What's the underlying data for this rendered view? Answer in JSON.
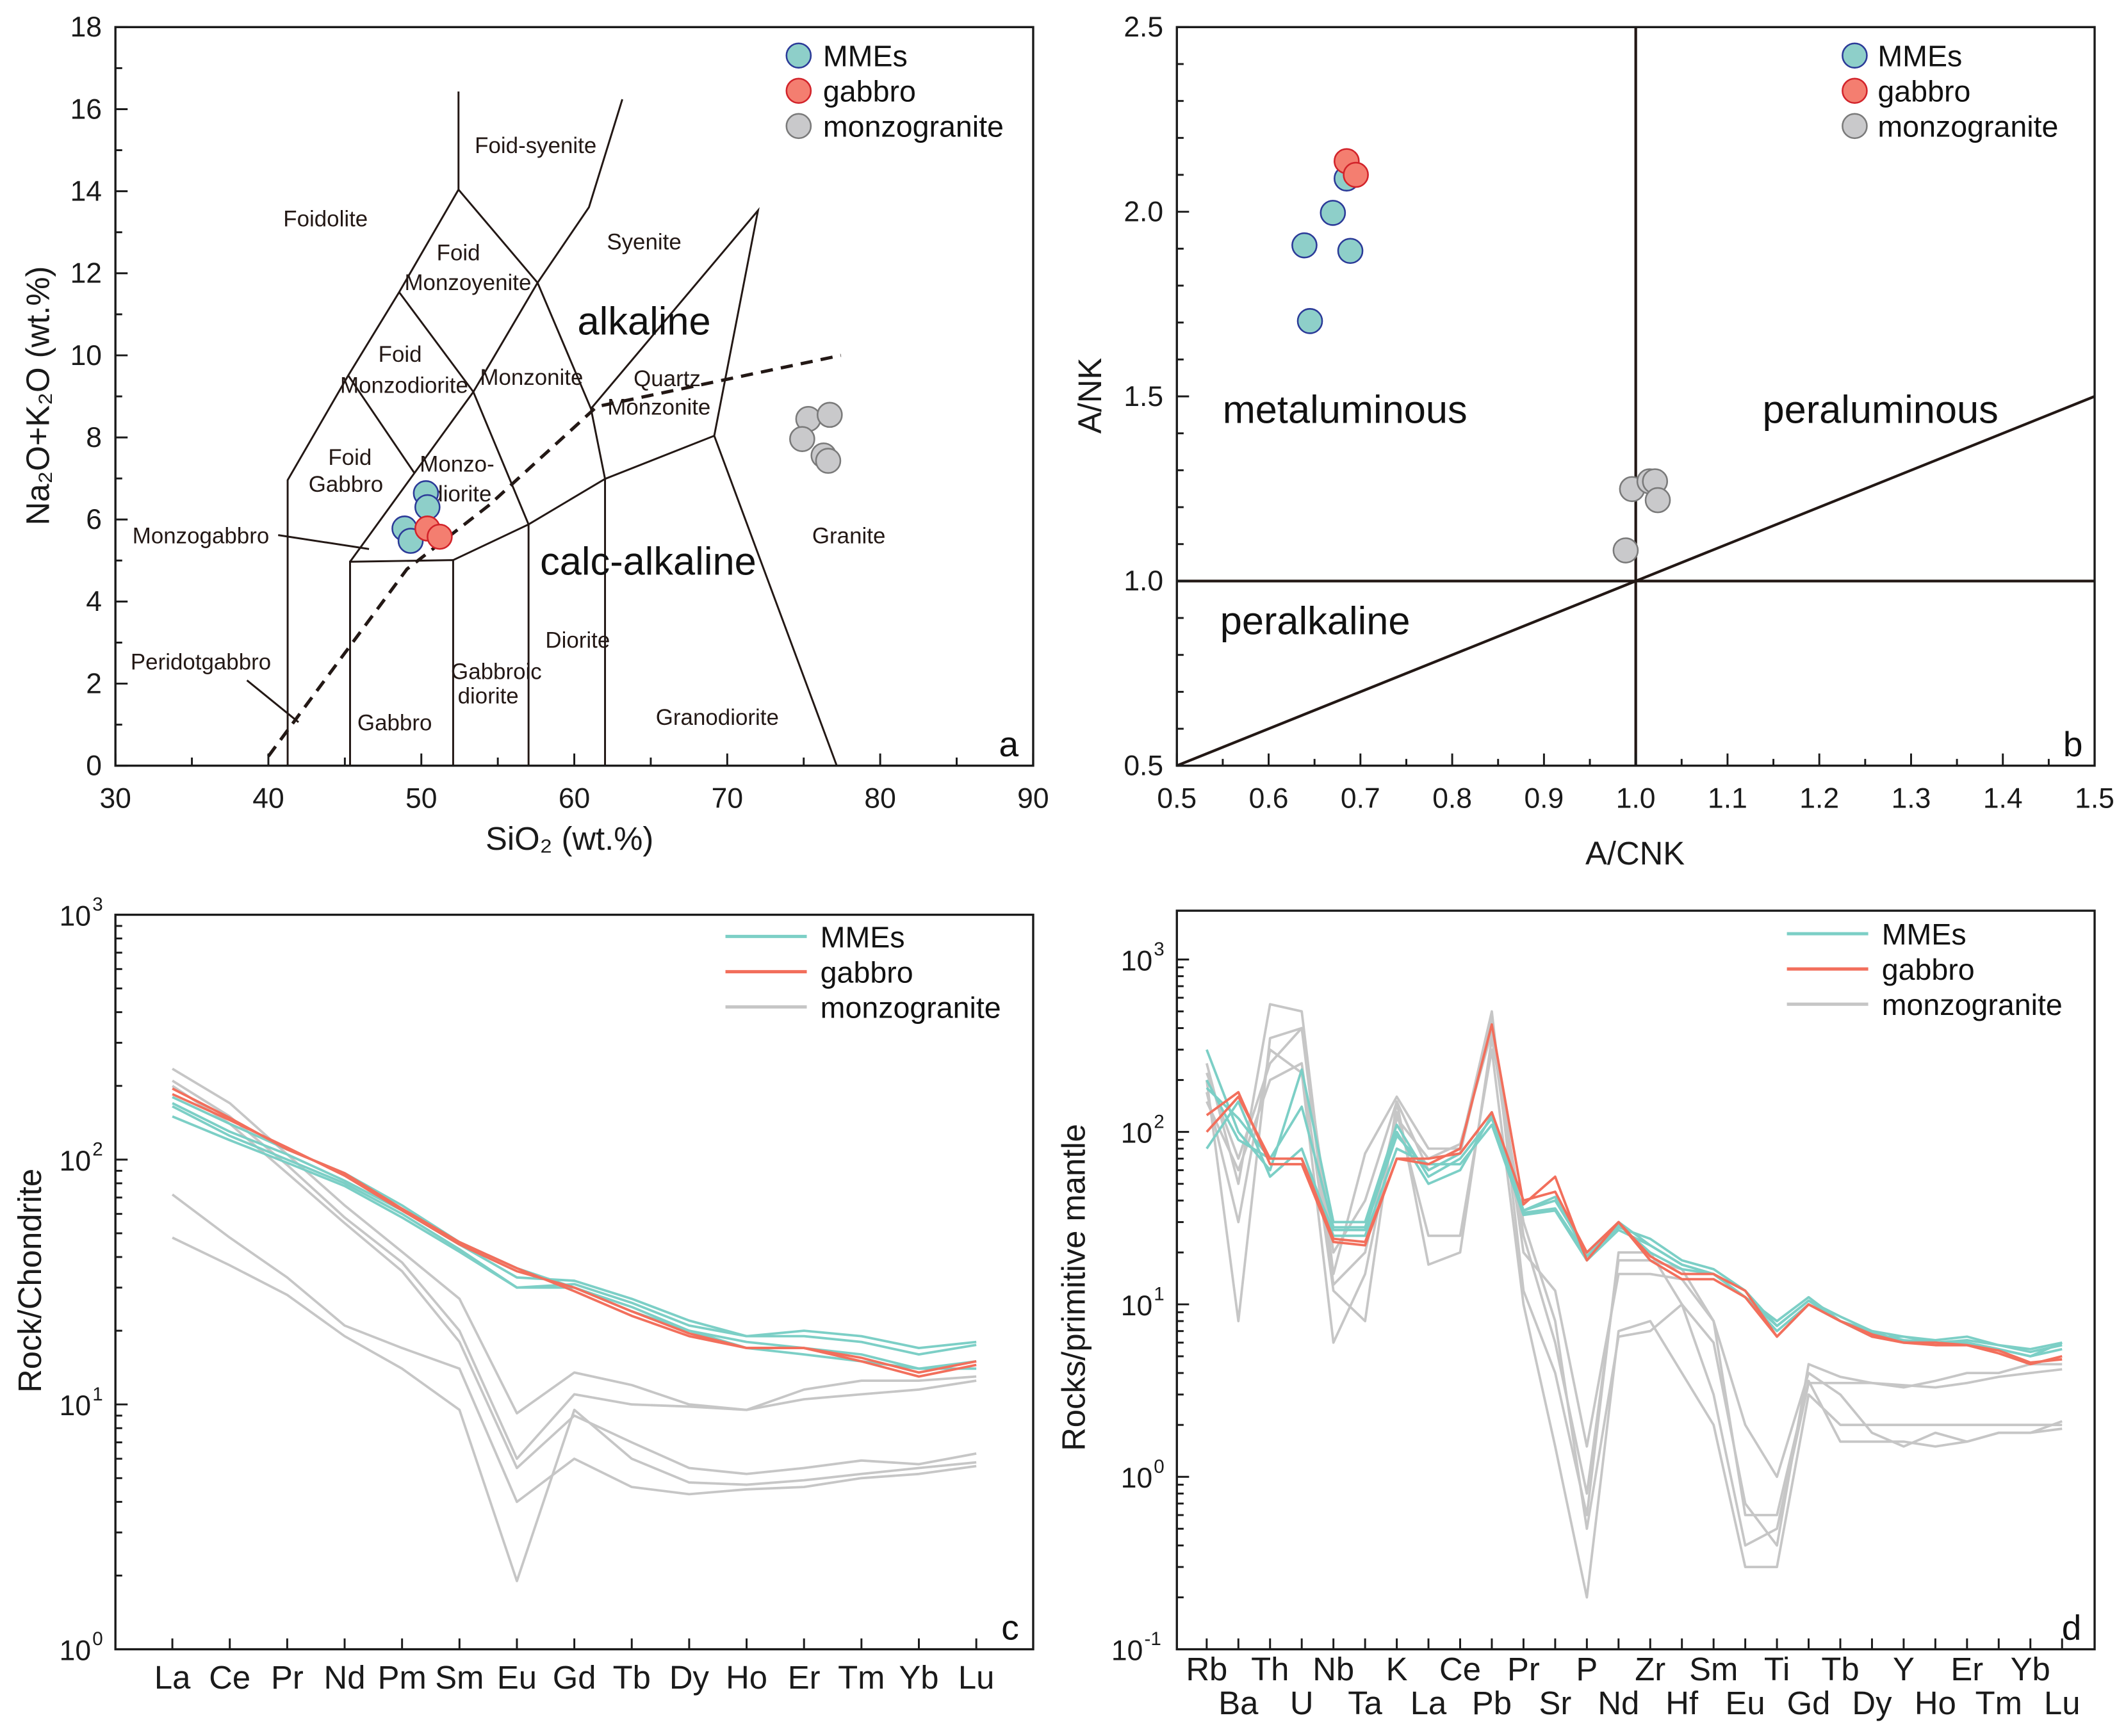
{
  "colors": {
    "mmes_fill": "#8ecfc9",
    "mmes_stroke": "#2b3a98",
    "gabbro_fill": "#f47e70",
    "gabbro_stroke": "#d2232a",
    "monzo_fill": "#c9c9cb",
    "monzo_stroke": "#7a7a7a",
    "mmes_line": "#7ccfc6",
    "gabbro_line": "#f26f5c",
    "monzo_line": "#c6c6c6"
  },
  "chart_data": [
    {
      "panel": "a",
      "type": "scatter",
      "title": "",
      "xlabel": "SiO₂ (wt.%)",
      "ylabel": "Na₂O+K₂O (wt.%)",
      "xlim": [
        30,
        90
      ],
      "ylim": [
        0,
        18
      ],
      "x_ticks": [
        "30",
        "40",
        "50",
        "60",
        "70",
        "80",
        "90"
      ],
      "y_ticks": [
        "0",
        "2",
        "4",
        "6",
        "8",
        "10",
        "12",
        "14",
        "16",
        "18"
      ],
      "legend_position": "top-right",
      "series": [
        {
          "name": "MMEs",
          "points": [
            [
              50.3,
              6.64
            ],
            [
              50.4,
              6.3
            ],
            [
              48.9,
              5.78
            ],
            [
              49.3,
              5.48
            ]
          ]
        },
        {
          "name": "gabbro",
          "points": [
            [
              50.4,
              5.78
            ],
            [
              51.2,
              5.58
            ]
          ]
        },
        {
          "name": "monzogranite",
          "points": [
            [
              75.3,
              8.45
            ],
            [
              76.7,
              8.55
            ],
            [
              74.9,
              7.96
            ],
            [
              76.3,
              7.56
            ],
            [
              76.6,
              7.43
            ]
          ]
        }
      ],
      "field_boundaries": [
        [
          [
            41.26,
            0
          ],
          [
            41.26,
            6.96
          ],
          [
            45.22,
            9.51
          ],
          [
            48.55,
            11.54
          ],
          [
            52.43,
            14.04
          ],
          [
            52.43,
            16.43
          ]
        ],
        [
          [
            52.43,
            14.04
          ],
          [
            57.6,
            11.77
          ],
          [
            60.96,
            13.61
          ],
          [
            63.14,
            16.24
          ]
        ],
        [
          [
            48.55,
            11.54
          ],
          [
            53.4,
            9.11
          ],
          [
            57.6,
            11.77
          ]
        ],
        [
          [
            45.22,
            9.51
          ],
          [
            49.55,
            7.13
          ]
        ],
        [
          [
            45.34,
            4.97
          ],
          [
            53.4,
            9.11
          ],
          [
            57.01,
            5.88
          ]
        ],
        [
          [
            57.6,
            11.77
          ],
          [
            61.09,
            8.7
          ],
          [
            62.01,
            6.99
          ]
        ],
        [
          [
            45.34,
            0
          ],
          [
            45.34,
            4.97
          ],
          [
            52.08,
            5.01
          ],
          [
            52.08,
            0
          ]
        ],
        [
          [
            52.08,
            5.01
          ],
          [
            57.01,
            5.88
          ],
          [
            62.01,
            6.99
          ],
          [
            69.15,
            8.04
          ],
          [
            77.16,
            0
          ]
        ],
        [
          [
            57.01,
            0
          ],
          [
            57.01,
            5.88
          ]
        ],
        [
          [
            62.01,
            0
          ],
          [
            62.01,
            6.99
          ]
        ],
        [
          [
            61.09,
            8.7
          ],
          [
            72.01,
            13.53
          ],
          [
            69.15,
            8.04
          ]
        ],
        [
          [
            40.64,
            5.62
          ],
          [
            46.58,
            5.28
          ]
        ],
        [
          [
            38.6,
            2.08
          ],
          [
            41.97,
            1.06
          ]
        ]
      ],
      "alkaline_divider": [
        [
          40.0,
          0.23
        ],
        [
          49.06,
          4.79
        ],
        [
          54.4,
          6.34
        ],
        [
          61.47,
          8.75
        ],
        [
          77.43,
          10.0
        ]
      ],
      "field_labels": [
        "Foid-syenite",
        "Foidolite",
        "Foid",
        "Monzoyenite",
        "Syenite",
        "alkaline",
        "Foid",
        "Monzodiorite",
        "Monzonite",
        "Quartz",
        "Monzonite",
        "Foid",
        "Gabbro",
        "Monzo-",
        "diorite",
        "Monzogabbro",
        "calc-alkaline",
        "Granite",
        "Diorite",
        "Peridotgabbro",
        "Gabbroic",
        "diorite",
        "Gabbro",
        "Granodiorite"
      ]
    },
    {
      "panel": "b",
      "type": "scatter",
      "title": "",
      "xlabel": "A/CNK",
      "ylabel": "A/NK",
      "xlim": [
        0.5,
        1.5
      ],
      "ylim": [
        0.5,
        2.5
      ],
      "x_ticks": [
        "0.5",
        "0.6",
        "0.7",
        "0.8",
        "0.9",
        "1.0",
        "1.1",
        "1.2",
        "1.3",
        "1.4",
        "1.5"
      ],
      "y_ticks": [
        "0.5",
        "1.0",
        "1.5",
        "2.0",
        "2.5"
      ],
      "legend_position": "top-right",
      "series": [
        {
          "name": "MMEs",
          "points": [
            [
              0.685,
              2.09
            ],
            [
              0.67,
              1.997
            ],
            [
              0.639,
              1.909
            ],
            [
              0.689,
              1.894
            ],
            [
              0.645,
              1.704
            ]
          ]
        },
        {
          "name": "gabbro",
          "points": [
            [
              0.685,
              2.137
            ],
            [
              0.695,
              2.1
            ]
          ]
        },
        {
          "name": "monzogranite",
          "points": [
            [
              0.996,
              1.249
            ],
            [
              1.015,
              1.27
            ],
            [
              1.021,
              1.27
            ],
            [
              1.024,
              1.219
            ],
            [
              0.989,
              1.083
            ]
          ]
        }
      ],
      "field_labels": [
        "metaluminous",
        "peraluminous",
        "peralkaline"
      ]
    },
    {
      "panel": "c",
      "type": "line",
      "title": "",
      "xlabel": "",
      "ylabel": "Rock/Chondrite",
      "yscale": "log",
      "ylim": [
        1,
        1000
      ],
      "y_ticks": [
        {
          "base": "10",
          "exp": "0"
        },
        {
          "base": "10",
          "exp": "1"
        },
        {
          "base": "10",
          "exp": "2"
        },
        {
          "base": "10",
          "exp": "3"
        }
      ],
      "categories": [
        "La",
        "Ce",
        "Pr",
        "Nd",
        "Pm",
        "Sm",
        "Eu",
        "Gd",
        "Tb",
        "Dy",
        "Ho",
        "Er",
        "Tm",
        "Yb",
        "Lu"
      ],
      "legend_position": "top-right",
      "legend": [
        "MMEs",
        "gabbro",
        "monzogranite"
      ],
      "series": [
        {
          "name": "monzogranite",
          "values": [
            235,
            170,
            105,
            65,
            42,
            27,
            9.2,
            13.5,
            12,
            10,
            9.5,
            11.5,
            12.5,
            12.5,
            13
          ]
        },
        {
          "name": "monzogranite",
          "values": [
            210,
            150,
            95,
            58,
            38,
            20,
            6,
            11,
            10,
            9.8,
            9.5,
            10.5,
            11,
            11.5,
            12.5
          ]
        },
        {
          "name": "monzogranite",
          "values": [
            200,
            140,
            88,
            55,
            35,
            18,
            5.5,
            9,
            7,
            5.5,
            5.2,
            5.5,
            5.9,
            5.7,
            6.3
          ]
        },
        {
          "name": "monzogranite",
          "values": [
            72,
            48,
            33,
            21,
            17,
            14,
            4,
            6,
            4.6,
            4.3,
            4.5,
            4.6,
            5,
            5.2,
            5.6
          ]
        },
        {
          "name": "monzogranite",
          "values": [
            48,
            37,
            28,
            19,
            14,
            9.5,
            1.9,
            9.5,
            6,
            4.8,
            4.7,
            4.9,
            5.2,
            5.5,
            5.8
          ]
        },
        {
          "name": "MMEs",
          "values": [
            150,
            120,
            97,
            78,
            58,
            42,
            30,
            30,
            25,
            20,
            17,
            16,
            15,
            14,
            15
          ]
        },
        {
          "name": "MMEs",
          "values": [
            165,
            125,
            100,
            80,
            60,
            43,
            30,
            31,
            26,
            21,
            19,
            19,
            18,
            16,
            17.5
          ]
        },
        {
          "name": "MMEs",
          "values": [
            170,
            130,
            105,
            82,
            62,
            45,
            33,
            32,
            27,
            22,
            19,
            20,
            19,
            17,
            18
          ]
        },
        {
          "name": "MMEs",
          "values": [
            180,
            140,
            110,
            88,
            65,
            46,
            36,
            30,
            24,
            20,
            18,
            17,
            16,
            14,
            14
          ]
        },
        {
          "name": "gabbro",
          "values": [
            195,
            148,
            110,
            88,
            63,
            46,
            36,
            29,
            23,
            19,
            17,
            17,
            15,
            13,
            14.5
          ]
        },
        {
          "name": "gabbro",
          "values": [
            185,
            145,
            112,
            86,
            62,
            45,
            35,
            30,
            24,
            19.5,
            17,
            17,
            15.5,
            13.5,
            15
          ]
        }
      ]
    },
    {
      "panel": "d",
      "type": "line",
      "title": "",
      "xlabel": "",
      "ylabel": "Rocks/primitive mantle",
      "yscale": "log",
      "ylim": [
        0.1,
        2000
      ],
      "y_ticks": [
        {
          "base": "10",
          "exp": "-1"
        },
        {
          "base": "10",
          "exp": "0"
        },
        {
          "base": "10",
          "exp": "1"
        },
        {
          "base": "10",
          "exp": "2"
        },
        {
          "base": "10",
          "exp": "3"
        }
      ],
      "categories": [
        "Rb",
        "Ba",
        "Th",
        "U",
        "Nb",
        "Ta",
        "K",
        "La",
        "Ce",
        "Pb",
        "Pr",
        "Sr",
        "P",
        "Nd",
        "Zr",
        "Hf",
        "Sm",
        "Eu",
        "Ti",
        "Gd",
        "Tb",
        "Dy",
        "Y",
        "Ho",
        "Er",
        "Tm",
        "Yb",
        "Lu"
      ],
      "legend_position": "top-right",
      "legend": [
        "MMEs",
        "gabbro",
        "monzogranite"
      ],
      "series": [
        {
          "name": "monzogranite",
          "values": [
            250,
            50,
            550,
            500,
            15,
            75,
            160,
            80,
            80,
            500,
            12,
            4,
            0.6,
            20,
            20,
            10,
            6,
            0.7,
            0.4,
            4.5,
            3.8,
            3.5,
            3.3,
            3.6,
            4,
            4,
            4.5,
            4.5
          ]
        },
        {
          "name": "monzogranite",
          "values": [
            200,
            8,
            350,
            400,
            13,
            20,
            130,
            25,
            25,
            300,
            10,
            1.5,
            0.2,
            7,
            8,
            4,
            2,
            0.3,
            0.3,
            3,
            2,
            2,
            2,
            2,
            2,
            2,
            2,
            2
          ]
        },
        {
          "name": "monzogranite",
          "values": [
            150,
            60,
            200,
            250,
            12,
            8,
            150,
            17,
            20,
            350,
            30,
            8,
            0.5,
            6.5,
            7,
            10,
            3,
            0.4,
            0.5,
            3.5,
            3.5,
            3.5,
            3.4,
            3.3,
            3.5,
            3.8,
            4,
            4.2
          ]
        },
        {
          "name": "monzogranite",
          "values": [
            170,
            30,
            300,
            220,
            6,
            15,
            120,
            70,
            85,
            380,
            20,
            12,
            1.5,
            15,
            15,
            14,
            8,
            2,
            1,
            4,
            3,
            1.8,
            1.5,
            1.8,
            1.6,
            1.8,
            1.8,
            1.9
          ]
        },
        {
          "name": "monzogranite",
          "values": [
            220,
            70,
            250,
            400,
            20,
            40,
            150,
            60,
            75,
            450,
            25,
            6,
            0.8,
            18,
            18,
            16,
            8,
            0.6,
            0.6,
            3.6,
            1.6,
            1.6,
            1.6,
            1.5,
            1.6,
            1.8,
            1.8,
            2.1
          ]
        },
        {
          "name": "MMEs",
          "values": [
            300,
            100,
            60,
            230,
            30,
            30,
            110,
            55,
            70,
            120,
            35,
            40,
            20,
            30,
            22,
            17,
            15,
            11,
            8,
            11,
            8,
            6.5,
            6.5,
            6,
            6,
            5.5,
            5,
            6
          ]
        },
        {
          "name": "MMEs",
          "values": [
            180,
            120,
            70,
            140,
            28,
            28,
            95,
            60,
            75,
            130,
            35,
            42,
            19,
            29,
            20,
            16,
            15,
            11,
            7.5,
            10.5,
            8,
            7,
            6,
            6,
            6,
            5.5,
            5,
            5.5
          ]
        },
        {
          "name": "MMEs",
          "values": [
            80,
            150,
            55,
            80,
            25,
            25,
            80,
            65,
            65,
            110,
            33,
            35,
            18,
            27,
            22,
            17,
            15,
            11,
            7,
            10,
            8,
            6.8,
            6.2,
            6,
            6.2,
            5.8,
            5.3,
            5.8
          ]
        },
        {
          "name": "MMEs",
          "values": [
            200,
            90,
            70,
            70,
            27,
            27,
            100,
            50,
            60,
            125,
            34,
            36,
            19,
            28,
            24,
            18,
            16,
            12,
            7.5,
            10.5,
            8.5,
            7,
            6.5,
            6.2,
            6.5,
            5.8,
            5.5,
            6
          ]
        },
        {
          "name": "gabbro",
          "values": [
            125,
            170,
            65,
            65,
            23,
            22,
            70,
            65,
            80,
            420,
            38,
            55,
            18,
            30,
            19,
            15,
            15,
            12,
            6.5,
            10,
            8,
            6.5,
            6,
            5.8,
            5.8,
            5.2,
            4.5,
            5
          ]
        },
        {
          "name": "gabbro",
          "values": [
            100,
            160,
            70,
            70,
            24,
            23,
            70,
            70,
            75,
            130,
            40,
            45,
            20,
            30,
            18,
            14,
            14,
            11,
            6.5,
            10,
            8,
            6.7,
            6,
            6,
            5.8,
            5.4,
            4.6,
            4.8
          ]
        }
      ]
    }
  ]
}
